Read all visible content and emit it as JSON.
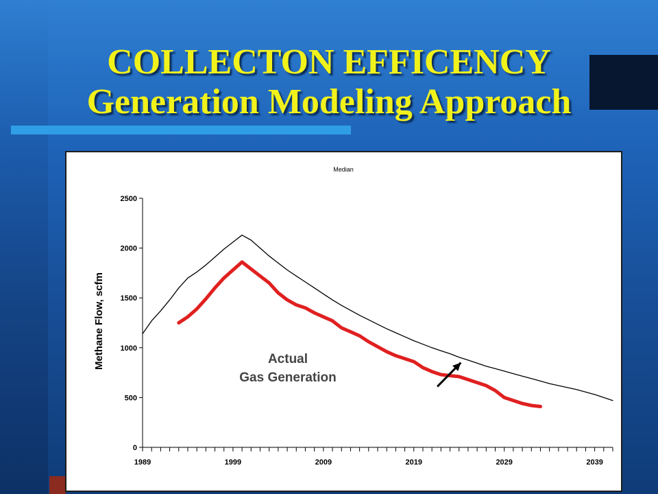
{
  "slide": {
    "title_line1": "COLLECTON EFFICENCY",
    "title_line2": "Generation Modeling Approach"
  },
  "chart_data": {
    "type": "line",
    "title": "Median",
    "xlabel": "",
    "ylabel": "Methane Flow, scfm",
    "xlim": [
      1989,
      2041
    ],
    "ylim": [
      0,
      2500
    ],
    "x_ticks": [
      1989,
      1999,
      2009,
      2019,
      2029,
      2039
    ],
    "y_ticks": [
      0,
      500,
      1000,
      1500,
      2000,
      2500
    ],
    "grid": false,
    "series": [
      {
        "name": "",
        "color": "#000000",
        "points": [
          [
            1989,
            1140
          ],
          [
            1990,
            1270
          ],
          [
            1991,
            1370
          ],
          [
            1992,
            1480
          ],
          [
            1993,
            1600
          ],
          [
            1994,
            1700
          ],
          [
            1995,
            1760
          ],
          [
            1996,
            1830
          ],
          [
            1997,
            1910
          ],
          [
            1998,
            1990
          ],
          [
            1999,
            2060
          ],
          [
            2000,
            2130
          ],
          [
            2001,
            2080
          ],
          [
            2002,
            2000
          ],
          [
            2003,
            1920
          ],
          [
            2004,
            1850
          ],
          [
            2005,
            1780
          ],
          [
            2006,
            1720
          ],
          [
            2007,
            1660
          ],
          [
            2008,
            1600
          ],
          [
            2009,
            1540
          ],
          [
            2010,
            1480
          ],
          [
            2011,
            1425
          ],
          [
            2012,
            1375
          ],
          [
            2013,
            1325
          ],
          [
            2014,
            1280
          ],
          [
            2015,
            1235
          ],
          [
            2016,
            1190
          ],
          [
            2017,
            1150
          ],
          [
            2018,
            1110
          ],
          [
            2019,
            1070
          ],
          [
            2020,
            1035
          ],
          [
            2021,
            1000
          ],
          [
            2022,
            970
          ],
          [
            2023,
            940
          ],
          [
            2024,
            905
          ],
          [
            2025,
            875
          ],
          [
            2026,
            845
          ],
          [
            2027,
            815
          ],
          [
            2028,
            790
          ],
          [
            2029,
            765
          ],
          [
            2030,
            740
          ],
          [
            2031,
            715
          ],
          [
            2032,
            690
          ],
          [
            2033,
            665
          ],
          [
            2034,
            640
          ],
          [
            2035,
            620
          ],
          [
            2036,
            600
          ],
          [
            2037,
            580
          ],
          [
            2038,
            555
          ],
          [
            2039,
            530
          ],
          [
            2040,
            500
          ],
          [
            2041,
            470
          ]
        ]
      },
      {
        "name": "",
        "color": "#e02020",
        "points": [
          [
            1993,
            1250
          ],
          [
            1994,
            1310
          ],
          [
            1995,
            1390
          ],
          [
            1996,
            1490
          ],
          [
            1997,
            1600
          ],
          [
            1998,
            1700
          ],
          [
            1999,
            1780
          ],
          [
            2000,
            1860
          ],
          [
            2001,
            1790
          ],
          [
            2002,
            1720
          ],
          [
            2003,
            1650
          ],
          [
            2004,
            1550
          ],
          [
            2005,
            1480
          ],
          [
            2006,
            1430
          ],
          [
            2007,
            1400
          ],
          [
            2008,
            1350
          ],
          [
            2009,
            1310
          ],
          [
            2010,
            1270
          ],
          [
            2011,
            1200
          ],
          [
            2012,
            1160
          ],
          [
            2013,
            1120
          ],
          [
            2014,
            1060
          ],
          [
            2015,
            1010
          ],
          [
            2016,
            960
          ],
          [
            2017,
            920
          ],
          [
            2018,
            890
          ],
          [
            2019,
            860
          ],
          [
            2020,
            800
          ],
          [
            2021,
            760
          ],
          [
            2022,
            730
          ],
          [
            2023,
            720
          ],
          [
            2024,
            710
          ],
          [
            2025,
            680
          ],
          [
            2026,
            650
          ],
          [
            2027,
            620
          ],
          [
            2028,
            570
          ],
          [
            2029,
            500
          ],
          [
            2030,
            470
          ],
          [
            2031,
            440
          ],
          [
            2032,
            420
          ],
          [
            2033,
            410
          ]
        ]
      }
    ],
    "annotation": {
      "line1": "Actual",
      "line2": "Gas Generation",
      "arrow_from": [
        2021.6,
        610
      ],
      "arrow_to": [
        2024.2,
        850
      ]
    }
  }
}
